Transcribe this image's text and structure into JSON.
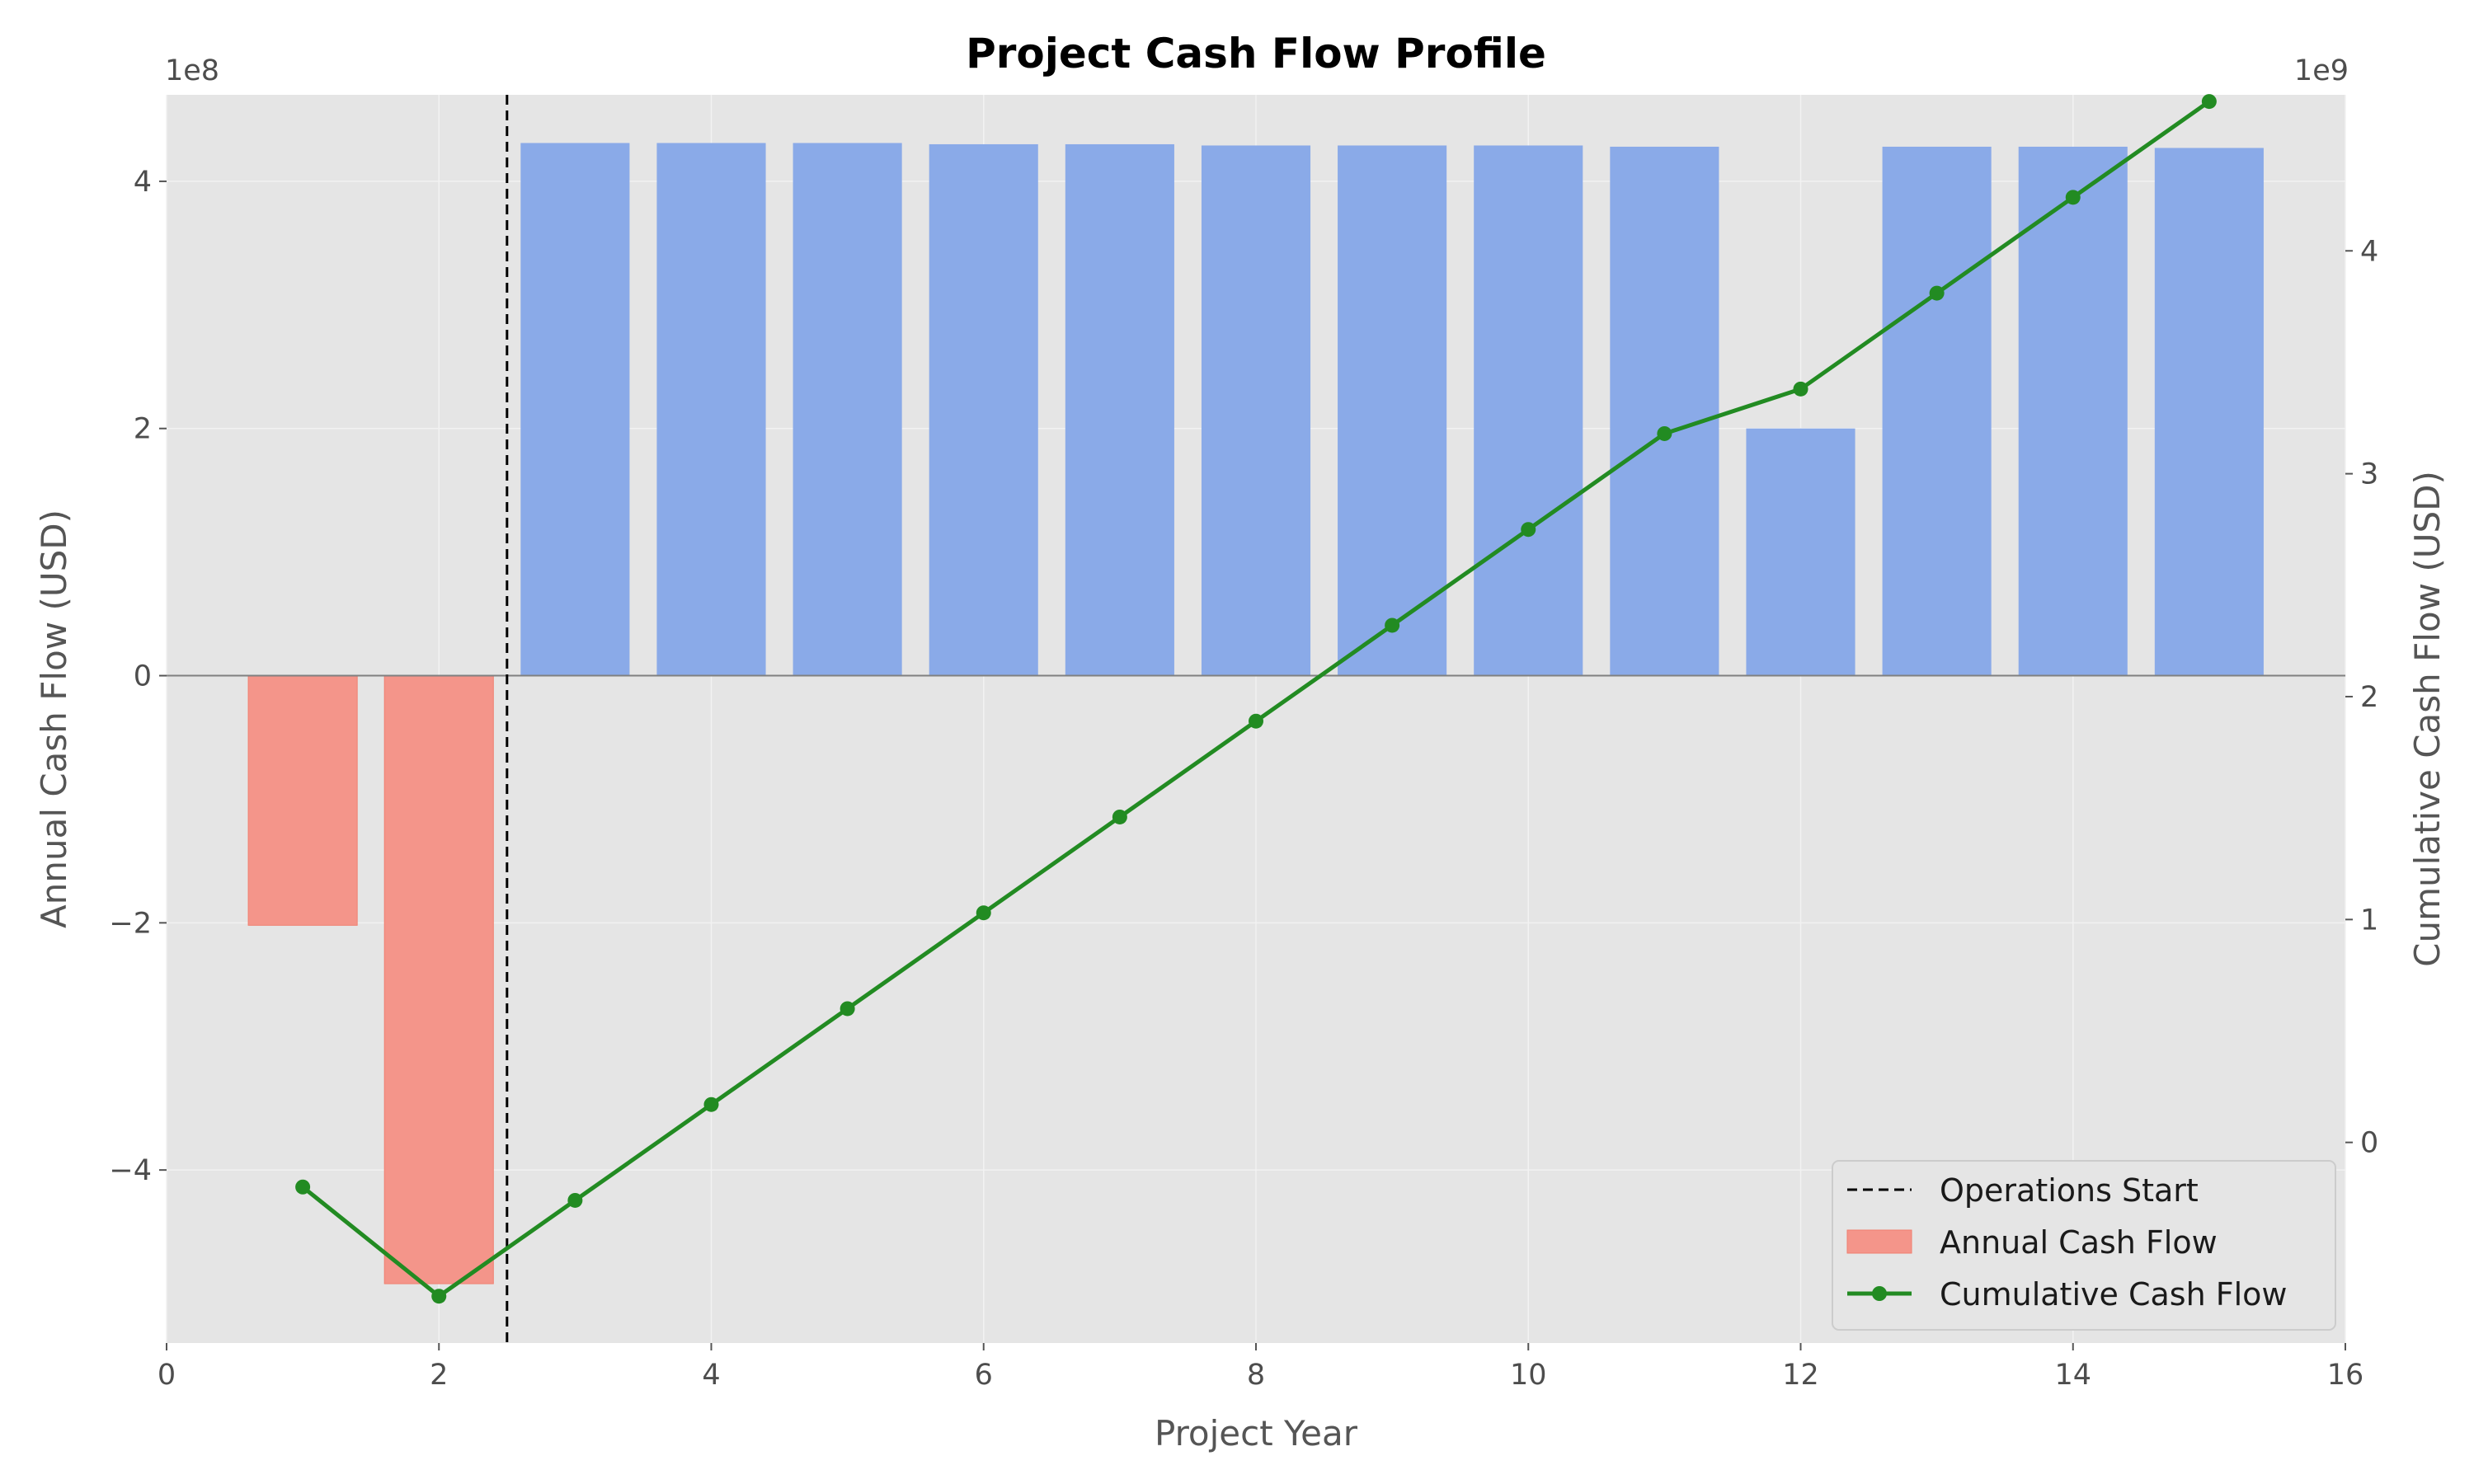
{
  "chart_data": {
    "type": "bar",
    "title": "Project Cash Flow Profile",
    "xlabel": "Project Year",
    "ylabel_left": "Annual Cash Flow (USD)",
    "ylabel_right": "Cumulative Cash Flow (USD)",
    "left_offset_label": "1e8",
    "right_offset_label": "1e9",
    "xlim": [
      0,
      16
    ],
    "ylim_left": [
      -540000000.0,
      470000000.0
    ],
    "ylim_right": [
      -900000000.0,
      4700000000.0
    ],
    "x_ticks": [
      0,
      2,
      4,
      6,
      8,
      10,
      12,
      14,
      16
    ],
    "left_ticks": [
      {
        "value": -400000000.0,
        "label": "−4"
      },
      {
        "value": -200000000.0,
        "label": "−2"
      },
      {
        "value": 0,
        "label": "0"
      },
      {
        "value": 200000000.0,
        "label": "2"
      },
      {
        "value": 400000000.0,
        "label": "4"
      }
    ],
    "right_ticks": [
      {
        "value": 0,
        "label": "0"
      },
      {
        "value": 1000000000.0,
        "label": "1"
      },
      {
        "value": 2000000000.0,
        "label": "2"
      },
      {
        "value": 3000000000.0,
        "label": "3"
      },
      {
        "value": 4000000000.0,
        "label": "4"
      }
    ],
    "grid": true,
    "legend_position": "lower-right",
    "operations_start_x": 2.5,
    "series": [
      {
        "name": "Annual Cash Flow",
        "type": "bar",
        "axis": "left",
        "x": [
          1,
          2,
          3,
          4,
          5,
          6,
          7,
          8,
          9,
          10,
          11,
          12,
          13,
          14,
          15
        ],
        "values": [
          -202000000.0,
          -492000000.0,
          431000000.0,
          431000000.0,
          431000000.0,
          430000000.0,
          430000000.0,
          429000000.0,
          429000000.0,
          429000000.0,
          428000000.0,
          200000000.0,
          428000000.0,
          428000000.0,
          427000000.0
        ],
        "negative_color": "#f4958a",
        "positive_color": "#8aaae8"
      },
      {
        "name": "Cumulative Cash Flow",
        "type": "line",
        "axis": "right",
        "x": [
          1,
          2,
          3,
          4,
          5,
          6,
          7,
          8,
          9,
          10,
          11,
          12,
          13,
          14,
          15
        ],
        "values": [
          -200000000.0,
          -690000000.0,
          -260000000.0,
          170000000.0,
          600000000.0,
          1030000000.0,
          1460000000.0,
          1890000000.0,
          2320000000.0,
          2750000000.0,
          3180000000.0,
          3380000000.0,
          3810000000.0,
          4240000000.0,
          4670000000.0
        ],
        "color": "#228b22"
      },
      {
        "name": "Operations Start",
        "type": "vline",
        "color": "#000000"
      }
    ]
  }
}
